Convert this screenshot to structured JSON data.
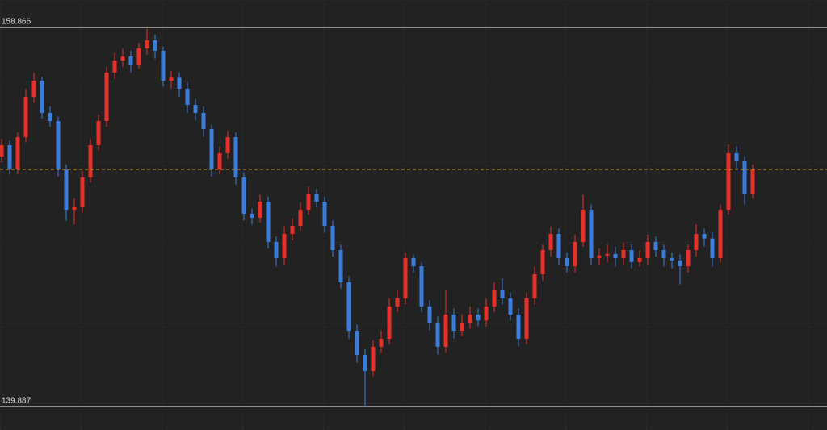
{
  "chart_data": {
    "type": "candlestick",
    "ylim": [
      139.887,
      158.866
    ],
    "yticks": [
      158.866,
      139.887
    ],
    "up_color": "#e8302a",
    "down_color": "#3c7ddb",
    "current_price": 151.76,
    "current_price_color": "#c8962a",
    "open": [
      152.4,
      152.97,
      151.76,
      153.37,
      155.39,
      156.2,
      154.59,
      154.18,
      151.76,
      149.74,
      149.9,
      151.36,
      152.97,
      154.18,
      156.61,
      157.21,
      157.41,
      157.01,
      157.82,
      158.22,
      157.7,
      156.2,
      156.35,
      155.8,
      154.99,
      154.59,
      153.78,
      151.76,
      152.57,
      153.37,
      151.36,
      149.54,
      149.34,
      150.14,
      148.13,
      147.32,
      148.53,
      148.93,
      149.74,
      150.55,
      150.14,
      148.93,
      147.72,
      146.11,
      143.68,
      142.47,
      141.66,
      142.88,
      143.28,
      144.9,
      145.3,
      147.32,
      146.91,
      144.9,
      144.09,
      142.88,
      144.49,
      143.68,
      144.09,
      144.49,
      144.2,
      144.9,
      145.7,
      145.3,
      144.49,
      143.28,
      145.3,
      146.51,
      147.72,
      148.53,
      147.32,
      146.91,
      148.13,
      149.74,
      147.32,
      147.45,
      147.52,
      147.32,
      147.72,
      147.12,
      147.32,
      148.13,
      147.72,
      147.32,
      147.2,
      146.91,
      147.72,
      148.53,
      148.3,
      147.32,
      149.74,
      152.57,
      152.16,
      150.55
    ],
    "high": [
      153.3,
      153.2,
      153.6,
      155.8,
      156.6,
      156.4,
      154.9,
      154.4,
      152.0,
      150.3,
      151.7,
      153.3,
      154.5,
      156.9,
      157.6,
      157.8,
      157.7,
      158.1,
      158.8,
      158.5,
      157.9,
      156.7,
      156.6,
      156.1,
      155.3,
      154.9,
      154.0,
      152.9,
      153.7,
      153.6,
      151.6,
      149.8,
      150.5,
      150.4,
      148.4,
      148.9,
      149.3,
      150.1,
      150.9,
      150.8,
      150.4,
      149.2,
      148.0,
      146.4,
      144.0,
      142.8,
      143.2,
      143.7,
      145.3,
      145.7,
      147.6,
      147.5,
      147.1,
      145.2,
      144.4,
      145.7,
      144.8,
      144.5,
      144.9,
      144.8,
      145.3,
      146.1,
      146.3,
      145.6,
      144.8,
      145.6,
      146.9,
      148.0,
      148.9,
      148.8,
      147.6,
      148.5,
      150.5,
      150.0,
      147.8,
      148.0,
      147.9,
      148.1,
      148.0,
      147.7,
      148.5,
      148.4,
      148.0,
      147.6,
      147.5,
      148.0,
      149.0,
      148.8,
      148.6,
      150.0,
      153.0,
      152.9,
      152.4,
      152.0
    ],
    "low": [
      152.1,
      151.5,
      151.5,
      153.1,
      155.1,
      154.3,
      153.9,
      151.4,
      149.2,
      149.0,
      149.6,
      151.1,
      152.7,
      153.9,
      156.3,
      156.9,
      156.6,
      156.8,
      157.5,
      157.3,
      155.9,
      155.8,
      155.4,
      154.6,
      154.2,
      153.4,
      151.4,
      151.5,
      152.3,
      151.0,
      149.2,
      149.0,
      149.1,
      147.8,
      146.9,
      147.0,
      148.2,
      148.7,
      149.5,
      149.9,
      148.6,
      147.4,
      145.8,
      143.3,
      142.1,
      139.89,
      141.4,
      142.6,
      143.0,
      144.6,
      145.0,
      146.6,
      144.6,
      143.7,
      142.5,
      142.6,
      143.3,
      143.4,
      143.8,
      143.9,
      143.9,
      144.6,
      145.0,
      144.2,
      142.9,
      143.0,
      145.0,
      146.2,
      147.4,
      147.0,
      146.6,
      146.6,
      147.9,
      147.0,
      147.0,
      147.1,
      146.9,
      147.0,
      146.8,
      146.9,
      147.0,
      147.4,
      146.9,
      146.8,
      146.0,
      146.6,
      147.4,
      147.9,
      146.9,
      147.1,
      149.5,
      151.8,
      150.0,
      150.3
    ],
    "close": [
      152.97,
      151.76,
      153.37,
      155.39,
      156.2,
      154.59,
      154.18,
      151.76,
      149.74,
      149.9,
      151.36,
      152.97,
      154.18,
      156.61,
      157.21,
      157.41,
      157.01,
      157.82,
      158.22,
      157.7,
      156.2,
      156.35,
      155.8,
      154.99,
      154.59,
      153.78,
      151.76,
      152.57,
      153.37,
      151.36,
      149.54,
      149.34,
      150.14,
      148.13,
      147.32,
      148.53,
      148.93,
      149.74,
      150.55,
      150.14,
      148.93,
      147.72,
      146.11,
      143.68,
      142.47,
      141.66,
      142.88,
      143.28,
      144.9,
      145.3,
      147.32,
      146.91,
      144.9,
      144.09,
      142.88,
      144.49,
      143.68,
      144.09,
      144.49,
      144.2,
      144.9,
      145.7,
      145.3,
      144.49,
      143.28,
      145.3,
      146.51,
      147.72,
      148.53,
      147.32,
      146.91,
      148.13,
      149.74,
      147.32,
      147.45,
      147.52,
      147.32,
      147.72,
      147.12,
      147.32,
      148.13,
      147.72,
      147.32,
      147.2,
      146.91,
      147.72,
      148.53,
      148.3,
      147.32,
      149.74,
      152.57,
      152.16,
      150.55,
      151.76
    ]
  }
}
